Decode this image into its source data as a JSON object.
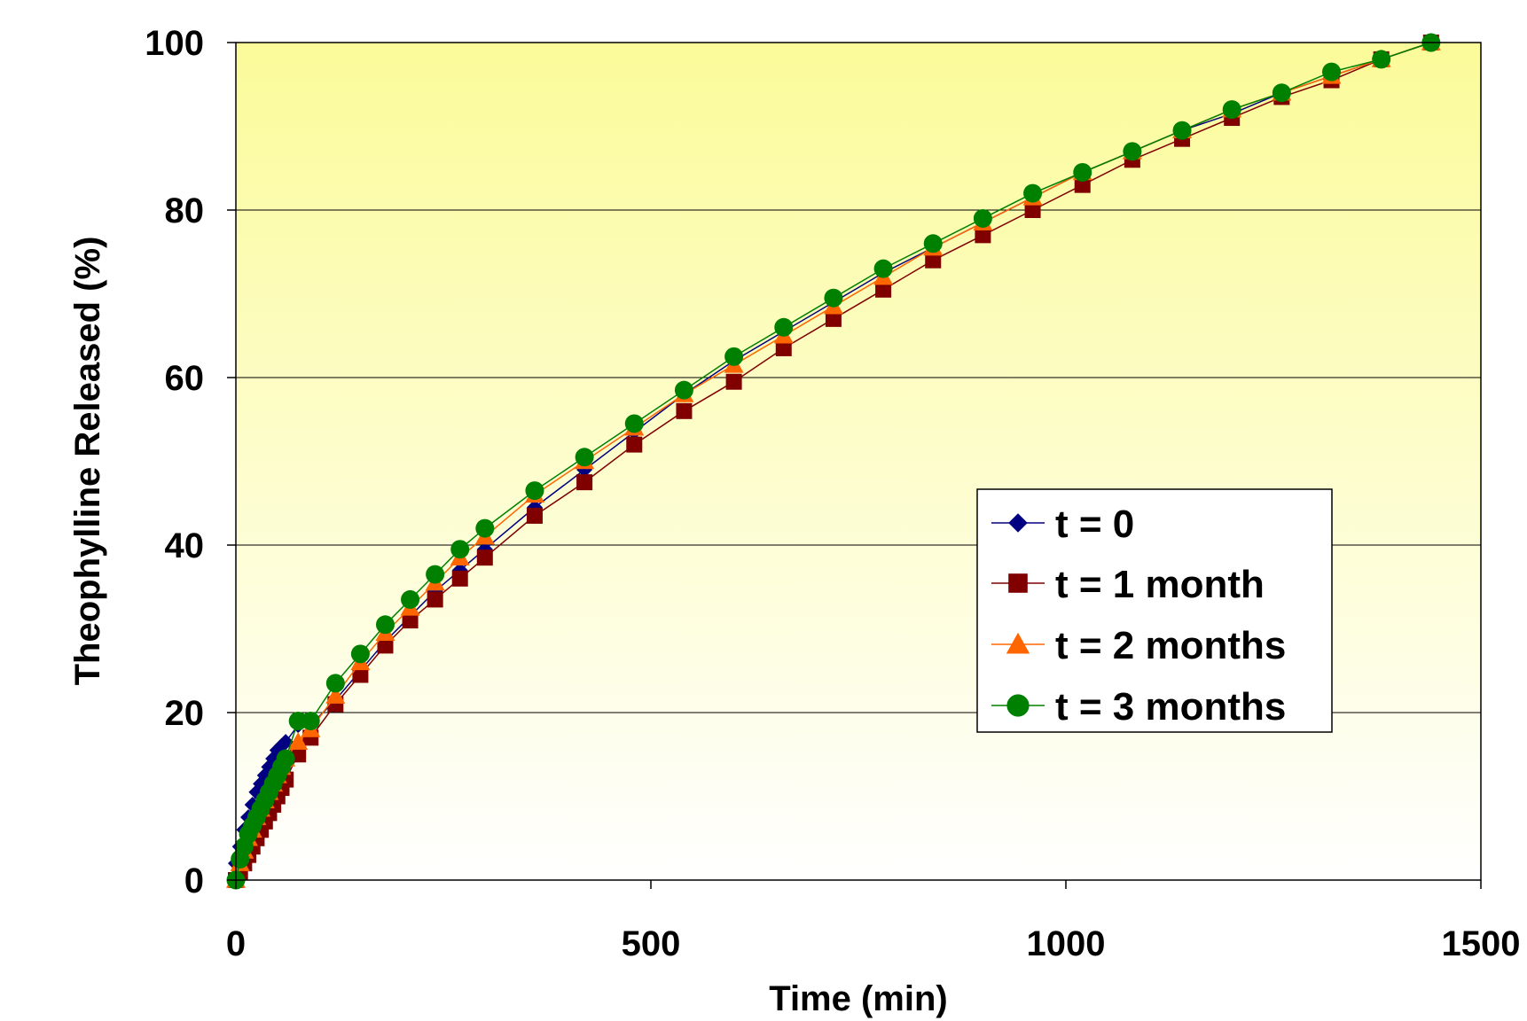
{
  "chart_data": {
    "type": "line",
    "title": "",
    "xlabel": "Time (min)",
    "ylabel": "Theophylline Released (%)",
    "xlim": [
      0,
      1500
    ],
    "ylim": [
      0,
      100
    ],
    "x_ticks": [
      0,
      500,
      1000,
      1500
    ],
    "y_ticks": [
      0,
      20,
      40,
      60,
      80,
      100
    ],
    "grid": "horizontal",
    "background": "gradient pale yellow (top) to white (bottom)",
    "legend_position": "center-right",
    "series": [
      {
        "name": "t = 0",
        "color": "#000080",
        "marker": "diamond",
        "x": [
          0,
          5,
          10,
          15,
          20,
          25,
          30,
          35,
          40,
          45,
          50,
          55,
          60,
          75,
          90,
          120,
          150,
          180,
          210,
          240,
          270,
          300,
          360,
          420,
          480,
          540,
          600,
          660,
          720,
          780,
          840,
          900,
          960,
          1020,
          1080,
          1140,
          1200,
          1260,
          1320,
          1380,
          1440
        ],
        "y": [
          2,
          4,
          6,
          7.5,
          9,
          10.5,
          11.5,
          12.5,
          13.5,
          14.5,
          15.5,
          16,
          16.5,
          18.5,
          18.5,
          21.5,
          25,
          28.5,
          31.5,
          34.5,
          37,
          39.5,
          44.5,
          49,
          53.5,
          58,
          62,
          65.5,
          69,
          72.5,
          75.5,
          78.5,
          81.5,
          84.5,
          87,
          89.5,
          91.5,
          94,
          96,
          98,
          100
        ]
      },
      {
        "name": "t = 1 month",
        "color": "#800000",
        "marker": "square",
        "x": [
          0,
          5,
          10,
          15,
          20,
          25,
          30,
          35,
          40,
          45,
          50,
          55,
          60,
          75,
          90,
          120,
          150,
          180,
          210,
          240,
          270,
          300,
          360,
          420,
          480,
          540,
          600,
          660,
          720,
          780,
          840,
          900,
          960,
          1020,
          1080,
          1140,
          1200,
          1260,
          1320,
          1380,
          1440
        ],
        "y": [
          0,
          1,
          2,
          3,
          4,
          5,
          6,
          7,
          8,
          9,
          10,
          11,
          12,
          15,
          17,
          21,
          24.5,
          28,
          31,
          33.5,
          36,
          38.5,
          43.5,
          47.5,
          52,
          56,
          59.5,
          63.5,
          67,
          70.5,
          74,
          77,
          80,
          83,
          86,
          88.5,
          91,
          93.5,
          95.5,
          98,
          100
        ]
      },
      {
        "name": "t = 2 months",
        "color": "#ff6600",
        "marker": "triangle",
        "x": [
          0,
          5,
          10,
          15,
          20,
          25,
          30,
          35,
          40,
          45,
          50,
          55,
          60,
          75,
          90,
          120,
          150,
          180,
          210,
          240,
          270,
          300,
          360,
          420,
          480,
          540,
          600,
          660,
          720,
          780,
          840,
          900,
          960,
          1020,
          1080,
          1140,
          1200,
          1260,
          1320,
          1380,
          1440
        ],
        "y": [
          0,
          2,
          3.5,
          5,
          6,
          7.5,
          8.5,
          9.5,
          10.5,
          11.5,
          12.5,
          13.5,
          14.5,
          16.5,
          18,
          22,
          26,
          29.5,
          32.5,
          35.5,
          38.5,
          41,
          46,
          50,
          54,
          58,
          61.5,
          65,
          68.5,
          72,
          75.5,
          78.5,
          81.5,
          84.5,
          87,
          89.5,
          92,
          94,
          96,
          98,
          100
        ]
      },
      {
        "name": "t = 3 months",
        "color": "#008000",
        "marker": "circle",
        "x": [
          0,
          5,
          10,
          15,
          20,
          25,
          30,
          35,
          40,
          45,
          50,
          55,
          60,
          75,
          90,
          120,
          150,
          180,
          210,
          240,
          270,
          300,
          360,
          420,
          480,
          540,
          600,
          660,
          720,
          780,
          840,
          900,
          960,
          1020,
          1080,
          1140,
          1200,
          1260,
          1320,
          1380,
          1440
        ],
        "y": [
          0,
          2.5,
          4,
          5.5,
          6.5,
          7.5,
          8.5,
          9.5,
          10.5,
          11.5,
          12.5,
          13.5,
          14.5,
          19,
          19,
          23.5,
          27,
          30.5,
          33.5,
          36.5,
          39.5,
          42,
          46.5,
          50.5,
          54.5,
          58.5,
          62.5,
          66,
          69.5,
          73,
          76,
          79,
          82,
          84.5,
          87,
          89.5,
          92,
          94,
          96.5,
          98,
          100
        ]
      }
    ]
  }
}
